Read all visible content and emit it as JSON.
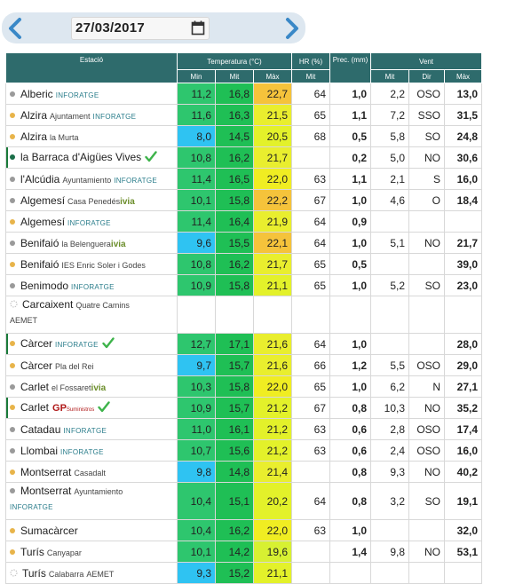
{
  "date_nav": {
    "date": "27/03/2017",
    "prev_icon": "chevron-left-icon",
    "next_icon": "chevron-right-icon",
    "calendar_icon": "calendar-icon"
  },
  "header": {
    "estacio": "Estació",
    "temperatura": "Temperatura (°C)",
    "hr": "HR (%)",
    "prec": "Prec. (mm)",
    "vent": "Vent",
    "min": "Min",
    "mit": "Mit",
    "max": "Màx",
    "hr_mit": "Mit",
    "vent_mit": "Mit",
    "vent_dir": "Dir",
    "vent_max": "Màx"
  },
  "colors": {
    "header": "#2e6b6c",
    "dot_grey": "#9a9a9a",
    "dot_orange": "#e8b44a",
    "dot_green": "#1a6e48",
    "check": "#3db34a"
  },
  "rows": [
    {
      "name": "Alberic",
      "sub": "",
      "badge": "INFORATGE",
      "dot": "grey",
      "min": "11,2",
      "mit": "16,8",
      "max": "22,7",
      "hr": "64",
      "prec": "1,0",
      "vmit": "2,2",
      "dir": "OSO",
      "vmax": "13,0",
      "cmin": "#2ec66e",
      "cmax": "#f5c33b"
    },
    {
      "name": "Alzira",
      "sub": "Ajuntament",
      "badge": "INFORATGE",
      "dot": "orange",
      "min": "11,6",
      "mit": "16,3",
      "max": "21,5",
      "hr": "65",
      "prec": "1,1",
      "vmit": "7,2",
      "dir": "SSO",
      "vmax": "31,5",
      "cmin": "#2ec66e",
      "cmax": "#e9ee2e"
    },
    {
      "name": "Alzira",
      "sub": "la Murta",
      "badge": "",
      "dot": "orange",
      "min": "8,0",
      "mit": "14,5",
      "max": "20,5",
      "hr": "68",
      "prec": "0,5",
      "vmit": "5,8",
      "dir": "SO",
      "vmax": "24,8",
      "cmin": "#2fc3f2",
      "cmax": "#e3f12a"
    },
    {
      "name": "la Barraca d'Aigües Vives",
      "sub": "",
      "badge": "",
      "check": true,
      "dot": "green",
      "accent": true,
      "min": "10,8",
      "mit": "16,2",
      "max": "21,7",
      "hr": "",
      "prec": "0,2",
      "vmit": "5,0",
      "dir": "NO",
      "vmax": "30,6",
      "cmin": "#2ec66e",
      "cmax": "#e9ee2e"
    },
    {
      "name": "l'Alcúdia",
      "sub": "Ayuntamiento",
      "badge": "INFORATGE",
      "dot": "grey",
      "min": "11,4",
      "mit": "16,5",
      "max": "22,0",
      "hr": "63",
      "prec": "1,1",
      "vmit": "2,1",
      "dir": "S",
      "vmax": "16,0",
      "cmin": "#2ec66e",
      "cmax": "#f0ed22"
    },
    {
      "name": "Algemesí",
      "sub": "Casa Penedés",
      "badge": "",
      "ivia": "ivia",
      "dot": "grey",
      "min": "10,1",
      "mit": "15,8",
      "max": "22,2",
      "hr": "67",
      "prec": "1,0",
      "vmit": "4,6",
      "dir": "O",
      "vmax": "18,4",
      "cmin": "#2ec66e",
      "cmax": "#f5c33b"
    },
    {
      "name": "Algemesí",
      "sub": "",
      "badge": "INFORATGE",
      "dot": "orange",
      "min": "11,4",
      "mit": "16,4",
      "max": "21,9",
      "hr": "64",
      "prec": "0,9",
      "vmit": "",
      "dir": "",
      "vmax": "",
      "cmin": "#2ec66e",
      "cmax": "#e9ee2e"
    },
    {
      "name": "Benifaió",
      "sub": "la Belenguera",
      "badge": "",
      "ivia": "ivia",
      "dot": "grey",
      "min": "9,6",
      "mit": "15,5",
      "max": "22,1",
      "hr": "64",
      "prec": "1,0",
      "vmit": "5,1",
      "dir": "NO",
      "vmax": "21,7",
      "cmin": "#2fc3f2",
      "cmax": "#f5c33b"
    },
    {
      "name": "Benifaió",
      "sub": "IES Enric Soler i Godes",
      "badge": "",
      "dot": "orange",
      "min": "10,8",
      "mit": "16,2",
      "max": "21,7",
      "hr": "65",
      "prec": "0,5",
      "vmit": "",
      "dir": "",
      "vmax": "39,0",
      "cmin": "#2ec66e",
      "cmax": "#e9ee2e"
    },
    {
      "name": "Benimodo",
      "sub": "",
      "badge": "INFORATGE",
      "dot": "grey",
      "min": "10,9",
      "mit": "15,8",
      "max": "21,1",
      "hr": "65",
      "prec": "1,0",
      "vmit": "5,2",
      "dir": "SO",
      "vmax": "23,0",
      "cmin": "#2ec66e",
      "cmax": "#e3f12a"
    },
    {
      "name": "Carcaixent",
      "sub": "Quatre Camins",
      "sub2": "AEMET",
      "badge": "",
      "dot": "empty",
      "wrap": true,
      "min": "",
      "mit": "",
      "max": "",
      "hr": "",
      "prec": "",
      "vmit": "",
      "dir": "",
      "vmax": "",
      "cmin": "#ffffff",
      "cmax": "#ffffff",
      "cmid": "#ffffff"
    },
    {
      "name": "Càrcer",
      "sub": "",
      "badge": "INFORATGE",
      "check": true,
      "dot": "orange",
      "accent": true,
      "min": "12,7",
      "mit": "17,1",
      "max": "21,6",
      "hr": "64",
      "prec": "1,0",
      "vmit": "",
      "dir": "",
      "vmax": "28,0",
      "cmin": "#2ec66e",
      "cmax": "#e9ee2e"
    },
    {
      "name": "Càrcer",
      "sub": "Pla del Rei",
      "badge": "",
      "dot": "orange",
      "min": "9,7",
      "mit": "15,7",
      "max": "21,6",
      "hr": "66",
      "prec": "1,2",
      "vmit": "5,5",
      "dir": "OSO",
      "vmax": "29,0",
      "cmin": "#2fc3f2",
      "cmax": "#e9ee2e"
    },
    {
      "name": "Carlet",
      "sub": "el Fossaret",
      "badge": "",
      "ivia": "ivia",
      "dot": "grey",
      "min": "10,3",
      "mit": "15,8",
      "max": "22,0",
      "hr": "65",
      "prec": "1,0",
      "vmit": "6,2",
      "dir": "N",
      "vmax": "27,1",
      "cmin": "#2ec66e",
      "cmax": "#f0ed22"
    },
    {
      "name": "Carlet",
      "sub": "",
      "badge": "",
      "gp": "GP",
      "gps": "Suministros",
      "check": true,
      "dot": "orange",
      "accent": true,
      "min": "10,9",
      "mit": "15,7",
      "max": "21,2",
      "hr": "67",
      "prec": "0,8",
      "vmit": "10,3",
      "dir": "NO",
      "vmax": "35,2",
      "cmin": "#2ec66e",
      "cmax": "#e3f12a"
    },
    {
      "name": "Catadau",
      "sub": "",
      "badge": "INFORATGE",
      "dot": "grey",
      "min": "11,0",
      "mit": "16,1",
      "max": "21,2",
      "hr": "63",
      "prec": "0,6",
      "vmit": "2,8",
      "dir": "OSO",
      "vmax": "17,4",
      "cmin": "#2ec66e",
      "cmax": "#e3f12a"
    },
    {
      "name": "Llombai",
      "sub": "",
      "badge": "INFORATGE",
      "dot": "grey",
      "min": "10,7",
      "mit": "15,6",
      "max": "21,2",
      "hr": "63",
      "prec": "0,6",
      "vmit": "2,4",
      "dir": "OSO",
      "vmax": "16,0",
      "cmin": "#2ec66e",
      "cmax": "#e3f12a"
    },
    {
      "name": "Montserrat",
      "sub": "Casadalt",
      "badge": "",
      "dot": "orange",
      "min": "9,8",
      "mit": "14,8",
      "max": "21,4",
      "hr": "",
      "prec": "0,8",
      "vmit": "9,3",
      "dir": "NO",
      "vmax": "40,2",
      "cmin": "#2fc3f2",
      "cmax": "#e9ee2e"
    },
    {
      "name": "Montserrat",
      "sub": "Ayuntamiento",
      "badge": "INFORATGE",
      "badge_wrap": true,
      "dot": "grey",
      "wrap": true,
      "min": "10,4",
      "mit": "15,1",
      "max": "20,2",
      "hr": "64",
      "prec": "0,8",
      "vmit": "3,2",
      "dir": "SO",
      "vmax": "19,1",
      "cmin": "#2ec66e",
      "cmax": "#e3f12a"
    },
    {
      "name": "Sumacàrcer",
      "sub": "",
      "badge": "",
      "dot": "orange",
      "min": "10,4",
      "mit": "16,2",
      "max": "22,0",
      "hr": "63",
      "prec": "1,0",
      "vmit": "",
      "dir": "",
      "vmax": "32,0",
      "cmin": "#2ec66e",
      "cmax": "#f0ed22"
    },
    {
      "name": "Turís",
      "sub": "Canyapar",
      "badge": "",
      "dot": "orange",
      "min": "10,1",
      "mit": "14,2",
      "max": "19,6",
      "hr": "",
      "prec": "1,4",
      "vmit": "9,8",
      "dir": "NO",
      "vmax": "53,1",
      "cmin": "#2ec66e",
      "cmax": "#d7f032"
    },
    {
      "name": "Turís",
      "sub": "Calabarra",
      "sub3": "AEMET",
      "badge": "",
      "dot": "empty",
      "min": "9,3",
      "mit": "15,2",
      "max": "21,1",
      "hr": "",
      "prec": "",
      "vmit": "",
      "dir": "",
      "vmax": "",
      "cmin": "#2fc3f2",
      "cmax": "#e3f12a"
    }
  ]
}
